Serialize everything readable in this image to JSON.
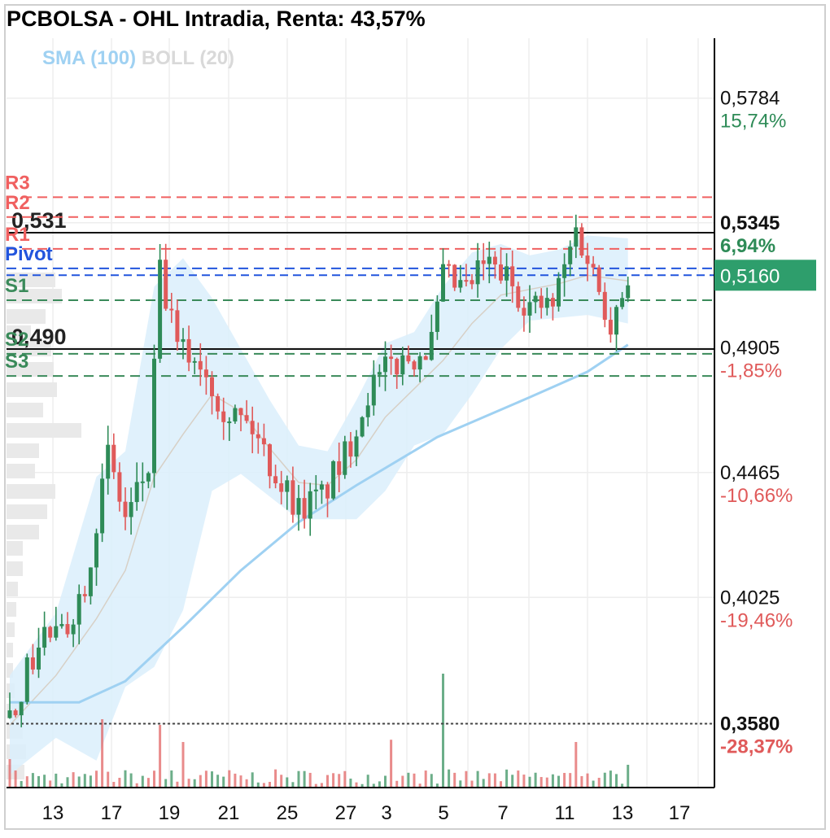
{
  "header": {
    "title": "PCBOLSA - OHL Intradia, Renta: 43,57%"
  },
  "legend": {
    "sma_label": "SMA (100)",
    "boll_label": "BOLL (20)"
  },
  "colors": {
    "up": "#2e8b57",
    "down": "#e05a5a",
    "sma": "#9fd1f2",
    "boll_band": "#dbeefb",
    "boll_mid": "#d7d0c6",
    "resistance": "#f06060",
    "support": "#3a8a5a",
    "pivot": "#2255dd",
    "current_box": "#2e9e6c"
  },
  "chart_data": {
    "type": "candlestick",
    "title": "PCBOLSA - OHL Intradia, Renta: 43,57%",
    "indicators": [
      "SMA (100)",
      "BOLL (20)"
    ],
    "x_tick_labels": [
      "13",
      "17",
      "19",
      "21",
      "25",
      "27",
      "3",
      "5",
      "7",
      "11",
      "13",
      "17"
    ],
    "y_range": [
      0.3355,
      0.5995
    ],
    "grid": true,
    "reference_price": 0.5,
    "current_price": 0.516,
    "current_price_label": "0,5160",
    "price_axis": [
      {
        "price": 0.5784,
        "label": "0,5784",
        "pct": "15,74%",
        "highlight": false
      },
      {
        "price": 0.5345,
        "label": "0,5345",
        "pct": "6,94%",
        "highlight": true
      },
      {
        "price": 0.4905,
        "label": "0,4905",
        "pct": "-1,85%",
        "highlight": false
      },
      {
        "price": 0.4465,
        "label": "0,4465",
        "pct": "-10,66%",
        "highlight": false
      },
      {
        "price": 0.4025,
        "label": "0,4025",
        "pct": "-19,46%",
        "highlight": false
      },
      {
        "price": 0.358,
        "label": "0,3580",
        "pct": "-28,37%",
        "highlight": true
      }
    ],
    "pivot_levels": [
      {
        "name": "R3",
        "price": 0.5435
      },
      {
        "name": "R2",
        "price": 0.5365
      },
      {
        "name": "R1",
        "price": 0.5253
      },
      {
        "name": "Pivot",
        "price": 0.5184
      },
      {
        "name": "S1",
        "price": 0.5072
      },
      {
        "name": "S2",
        "price": 0.4883
      },
      {
        "name": "S3",
        "price": 0.4805
      }
    ],
    "horizontal_lines": [
      {
        "label": "0,531",
        "price": 0.531
      },
      {
        "label": "0,490",
        "price": 0.49
      }
    ],
    "minimum_line": 0.358,
    "candles": {
      "count": 108,
      "anchors": [
        {
          "i": 0,
          "close": 0.36
        },
        {
          "i": 3,
          "close": 0.376
        },
        {
          "i": 6,
          "close": 0.39
        },
        {
          "i": 9,
          "close": 0.388
        },
        {
          "i": 13,
          "close": 0.408
        },
        {
          "i": 17,
          "close": 0.452
        },
        {
          "i": 20,
          "close": 0.43
        },
        {
          "i": 24,
          "close": 0.448
        },
        {
          "i": 26,
          "close": 0.516
        },
        {
          "i": 29,
          "close": 0.49
        },
        {
          "i": 33,
          "close": 0.486
        },
        {
          "i": 37,
          "close": 0.47
        },
        {
          "i": 42,
          "close": 0.462
        },
        {
          "i": 46,
          "close": 0.446
        },
        {
          "i": 50,
          "close": 0.434
        },
        {
          "i": 54,
          "close": 0.438
        },
        {
          "i": 58,
          "close": 0.452
        },
        {
          "i": 62,
          "close": 0.475
        },
        {
          "i": 66,
          "close": 0.484
        },
        {
          "i": 70,
          "close": 0.488
        },
        {
          "i": 73,
          "close": 0.492
        },
        {
          "i": 75,
          "close": 0.515
        },
        {
          "i": 79,
          "close": 0.51
        },
        {
          "i": 82,
          "close": 0.52
        },
        {
          "i": 86,
          "close": 0.515
        },
        {
          "i": 90,
          "close": 0.505
        },
        {
          "i": 94,
          "close": 0.505
        },
        {
          "i": 98,
          "close": 0.532
        },
        {
          "i": 101,
          "close": 0.517
        },
        {
          "i": 104,
          "close": 0.5
        },
        {
          "i": 107,
          "close": 0.516
        }
      ]
    },
    "sma_100": [
      {
        "i": 0,
        "value": 0.3655
      },
      {
        "i": 12,
        "value": 0.3655
      },
      {
        "i": 20,
        "value": 0.373
      },
      {
        "i": 30,
        "value": 0.392
      },
      {
        "i": 40,
        "value": 0.412
      },
      {
        "i": 50,
        "value": 0.429
      },
      {
        "i": 60,
        "value": 0.442
      },
      {
        "i": 74,
        "value": 0.459
      },
      {
        "i": 90,
        "value": 0.473
      },
      {
        "i": 100,
        "value": 0.482
      },
      {
        "i": 107,
        "value": 0.4915
      }
    ],
    "bollinger_20": [
      {
        "i": 0,
        "upper": 0.375,
        "middle": 0.3575,
        "lower": 0.34
      },
      {
        "i": 8,
        "upper": 0.397,
        "middle": 0.375,
        "lower": 0.353
      },
      {
        "i": 15,
        "upper": 0.445,
        "middle": 0.395,
        "lower": 0.345
      },
      {
        "i": 20,
        "upper": 0.454,
        "middle": 0.412,
        "lower": 0.371
      },
      {
        "i": 25,
        "upper": 0.512,
        "middle": 0.445,
        "lower": 0.378
      },
      {
        "i": 30,
        "upper": 0.522,
        "middle": 0.46,
        "lower": 0.398
      },
      {
        "i": 35,
        "upper": 0.508,
        "middle": 0.474,
        "lower": 0.44
      },
      {
        "i": 40,
        "upper": 0.49,
        "middle": 0.468,
        "lower": 0.446
      },
      {
        "i": 45,
        "upper": 0.472,
        "middle": 0.455,
        "lower": 0.438
      },
      {
        "i": 50,
        "upper": 0.456,
        "middle": 0.443,
        "lower": 0.43
      },
      {
        "i": 55,
        "upper": 0.454,
        "middle": 0.442,
        "lower": 0.43
      },
      {
        "i": 60,
        "upper": 0.472,
        "middle": 0.451,
        "lower": 0.43
      },
      {
        "i": 65,
        "upper": 0.492,
        "middle": 0.466,
        "lower": 0.44
      },
      {
        "i": 70,
        "upper": 0.496,
        "middle": 0.476,
        "lower": 0.456
      },
      {
        "i": 75,
        "upper": 0.512,
        "middle": 0.486,
        "lower": 0.46
      },
      {
        "i": 80,
        "upper": 0.524,
        "middle": 0.499,
        "lower": 0.474
      },
      {
        "i": 85,
        "upper": 0.527,
        "middle": 0.509,
        "lower": 0.49
      },
      {
        "i": 90,
        "upper": 0.523,
        "middle": 0.511,
        "lower": 0.5
      },
      {
        "i": 95,
        "upper": 0.525,
        "middle": 0.513,
        "lower": 0.501
      },
      {
        "i": 100,
        "upper": 0.53,
        "middle": 0.516,
        "lower": 0.502
      },
      {
        "i": 107,
        "upper": 0.529,
        "middle": 0.514,
        "lower": 0.499
      }
    ],
    "volume_spikes": [
      {
        "i": 0,
        "value": 0.25
      },
      {
        "i": 16,
        "value": 0.6
      },
      {
        "i": 26,
        "value": 0.55
      },
      {
        "i": 30,
        "value": 0.4
      },
      {
        "i": 66,
        "value": 0.42
      },
      {
        "i": 75,
        "value": 1.0
      },
      {
        "i": 98,
        "value": 0.4
      },
      {
        "i": 107,
        "value": 0.2
      }
    ]
  }
}
